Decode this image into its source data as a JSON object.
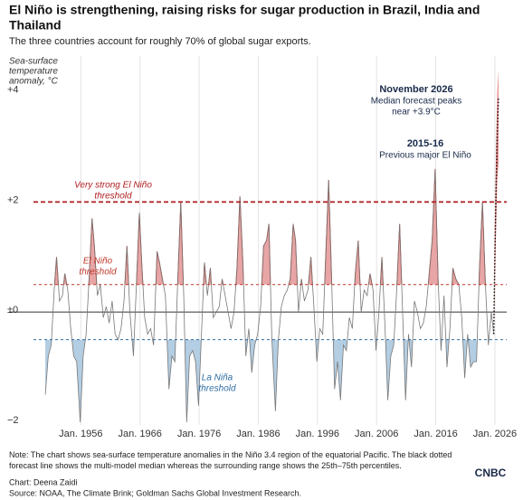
{
  "chart_data": {
    "type": "line",
    "title": [
      "El Niño is strengthening, raising risks for sugar production in Brazil, India and",
      "Thailand"
    ],
    "subtitle": "The three countries account for roughly 70% of global sugar exports.",
    "y_label": [
      "Sea-surface",
      "temperature",
      "anomaly, °C"
    ],
    "xlim": [
      1948,
      2028
    ],
    "ylim": [
      -2.05,
      4.65
    ],
    "xticks": [
      {
        "value": 1956,
        "label": "Jan. 1956"
      },
      {
        "value": 1966,
        "label": "Jan. 1966"
      },
      {
        "value": 1976,
        "label": "Jan. 1976"
      },
      {
        "value": 1986,
        "label": "Jan. 1986"
      },
      {
        "value": 1996,
        "label": "Jan. 1996"
      },
      {
        "value": 2006,
        "label": "Jan. 2006"
      },
      {
        "value": 2016,
        "label": "Jan. 2016"
      },
      {
        "value": 2026,
        "label": "Jan. 2026"
      }
    ],
    "yticks": [
      {
        "value": 4,
        "label": "+4"
      },
      {
        "value": 2,
        "label": "+2"
      },
      {
        "value": 0,
        "label": "±0"
      },
      {
        "value": -2,
        "label": "−2"
      }
    ],
    "grid": true,
    "thresholds": [
      {
        "value": 2,
        "label": [
          "Very strong El Niño",
          "threshold"
        ],
        "color": "#b01c20"
      },
      {
        "value": 0.5,
        "label": [
          "El Niño",
          "threshold"
        ],
        "color": "#c0392b"
      },
      {
        "value": -0.5,
        "label": [
          "La Niña",
          "threshold"
        ],
        "color": "#2f6da3"
      }
    ],
    "x": [
      1950.0,
      1950.5,
      1951.0,
      1951.5,
      1951.9,
      1952.4,
      1952.9,
      1953.3,
      1953.8,
      1954.3,
      1954.8,
      1955.3,
      1955.9,
      1956.4,
      1956.9,
      1957.4,
      1957.9,
      1958.3,
      1958.8,
      1959.3,
      1959.8,
      1960.3,
      1960.8,
      1961.3,
      1961.8,
      1962.3,
      1962.8,
      1963.3,
      1963.8,
      1964.3,
      1964.9,
      1965.4,
      1965.9,
      1966.3,
      1966.8,
      1967.3,
      1967.8,
      1968.3,
      1968.9,
      1969.3,
      1969.8,
      1970.3,
      1970.9,
      1971.4,
      1971.9,
      1972.4,
      1972.9,
      1973.4,
      1973.9,
      1974.4,
      1974.9,
      1975.4,
      1975.9,
      1976.4,
      1976.9,
      1977.4,
      1977.9,
      1978.4,
      1978.9,
      1979.4,
      1979.9,
      1980.4,
      1980.9,
      1981.4,
      1981.9,
      1982.4,
      1982.9,
      1983.4,
      1983.9,
      1984.4,
      1984.9,
      1985.4,
      1985.9,
      1986.4,
      1986.9,
      1987.4,
      1987.8,
      1988.3,
      1988.9,
      1989.4,
      1989.9,
      1990.4,
      1990.9,
      1991.4,
      1991.9,
      1992.3,
      1992.8,
      1993.3,
      1993.8,
      1994.4,
      1994.9,
      1995.4,
      1995.9,
      1996.4,
      1996.9,
      1997.4,
      1997.9,
      1998.4,
      1998.9,
      1999.4,
      1999.9,
      2000.4,
      2000.9,
      2001.4,
      2001.9,
      2002.4,
      2002.9,
      2003.4,
      2003.9,
      2004.4,
      2004.9,
      2005.4,
      2005.9,
      2006.4,
      2006.9,
      2007.4,
      2007.9,
      2008.4,
      2008.9,
      2009.4,
      2009.9,
      2010.4,
      2010.9,
      2011.4,
      2011.9,
      2012.4,
      2012.9,
      2013.4,
      2013.9,
      2014.4,
      2014.9,
      2015.4,
      2015.9,
      2016.4,
      2016.9,
      2017.4,
      2017.9,
      2018.4,
      2018.9,
      2019.4,
      2019.9,
      2020.4,
      2020.9,
      2021.4,
      2021.9,
      2022.4,
      2022.9,
      2023.4,
      2023.9,
      2024.4,
      2024.9,
      2025.4,
      2025.8
    ],
    "series": [
      {
        "name": "Observed",
        "color": "#777777",
        "values": [
          -1.5,
          -0.8,
          -0.6,
          0.4,
          1.0,
          0.2,
          0.3,
          0.7,
          0.4,
          -0.3,
          -0.8,
          -0.9,
          -2.0,
          -0.8,
          -0.4,
          0.6,
          1.7,
          1.2,
          0.3,
          0.5,
          -0.1,
          0.1,
          -0.2,
          0.2,
          -0.4,
          -0.5,
          -0.3,
          0.2,
          1.2,
          0.0,
          -0.8,
          0.5,
          1.8,
          0.9,
          -0.1,
          -0.4,
          -0.3,
          -0.6,
          1.1,
          0.9,
          0.6,
          0.3,
          -1.4,
          -0.8,
          -0.9,
          0.6,
          2.0,
          0.3,
          -2.0,
          -0.8,
          -0.7,
          -0.9,
          -1.7,
          -0.4,
          0.9,
          0.3,
          0.8,
          -0.1,
          0.0,
          0.1,
          0.6,
          0.3,
          0.0,
          -0.3,
          0.0,
          0.8,
          2.1,
          0.9,
          -0.8,
          -0.3,
          -1.1,
          -0.6,
          -0.4,
          0.1,
          1.2,
          1.3,
          1.6,
          -0.5,
          -1.8,
          -0.5,
          0.1,
          0.3,
          0.4,
          0.6,
          1.6,
          1.3,
          0.0,
          0.6,
          0.2,
          0.4,
          1.0,
          0.1,
          -0.9,
          -0.3,
          -0.4,
          1.0,
          2.4,
          0.6,
          -1.4,
          -0.9,
          -1.6,
          -0.6,
          -0.7,
          -0.1,
          -0.3,
          0.7,
          1.3,
          0.0,
          0.4,
          0.3,
          0.7,
          0.4,
          -0.7,
          0.0,
          1.0,
          -0.2,
          -1.6,
          -0.8,
          -0.6,
          0.4,
          1.6,
          0.0,
          -1.6,
          -0.4,
          -1.0,
          0.2,
          0.0,
          -0.3,
          -0.2,
          0.1,
          0.7,
          1.3,
          2.6,
          0.6,
          -0.7,
          0.3,
          -1.0,
          -0.3,
          0.8,
          0.6,
          0.5,
          -0.1,
          -1.2,
          -0.4,
          -1.0,
          -0.9,
          -0.9,
          0.8,
          2.0,
          0.5,
          -0.6,
          0.0,
          -0.4
        ]
      }
    ],
    "forecast": {
      "color": "#111111",
      "range_color": "#d9534f",
      "x": [
        2025.8,
        2026.0,
        2026.2,
        2026.4,
        2026.6
      ],
      "median": [
        -0.4,
        1.0,
        2.2,
        3.2,
        3.9
      ],
      "lower": [
        -0.4,
        0.6,
        1.5,
        2.4,
        2.7
      ],
      "upper": [
        -0.4,
        1.6,
        3.0,
        4.0,
        4.4
      ]
    },
    "annotations": [
      {
        "title": "November 2026",
        "text": [
          "Median forecast peaks",
          "near +3.9°C"
        ]
      },
      {
        "title": "2015-16",
        "text": [
          "Previous major El Niño"
        ]
      }
    ],
    "note": "Note: The chart shows sea-surface temperature anomalies in the Niño 3.4 region of the equatorial Pacific. The black dotted forecast line shows the multi-model median whereas the surrounding range shows the 25th–75th percentiles.",
    "credit": "Chart: Deena Zaidi",
    "source": "Source: NOAA, The Climate Brink; Goldman Sachs Global Investment Research.",
    "logo": "CNBC"
  }
}
